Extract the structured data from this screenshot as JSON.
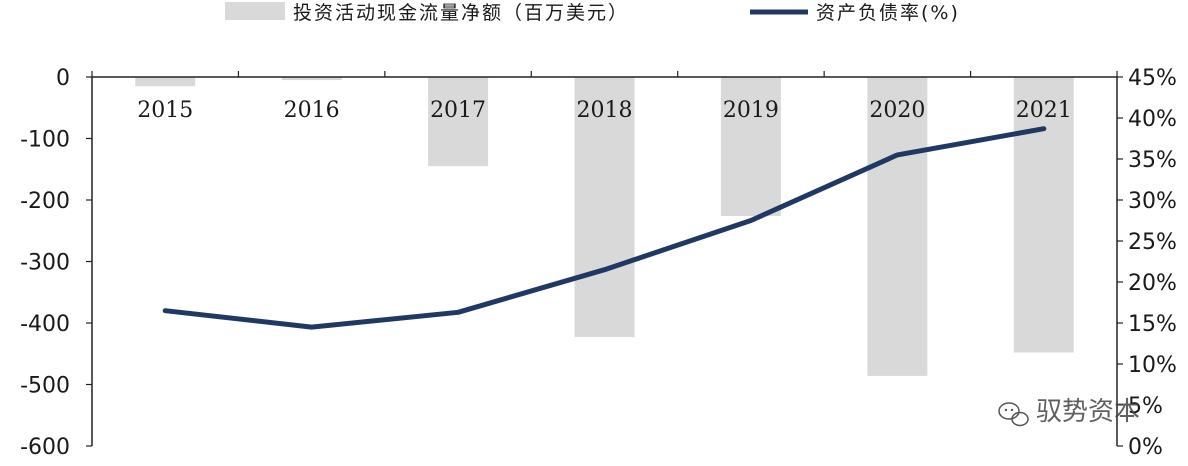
{
  "chart_data": {
    "type": "bar",
    "categories": [
      "2015",
      "2016",
      "2017",
      "2018",
      "2019",
      "2020",
      "2021"
    ],
    "series": [
      {
        "name": "投资活动现金流量净额（百万美元）",
        "type": "bar",
        "axis": "left",
        "values": [
          -15,
          -5,
          -145,
          -423,
          -226,
          -486,
          -448
        ],
        "color": "#d9d9d9"
      },
      {
        "name": "资产负债率(%)",
        "type": "line",
        "axis": "right",
        "values": [
          16.5,
          14.5,
          16.3,
          21.5,
          27.5,
          35.5,
          38.7
        ],
        "color": "#1f3864"
      }
    ],
    "left_axis": {
      "ylim": [
        -600,
        0
      ],
      "ticks": [
        0,
        -100,
        -200,
        -300,
        -400,
        -500,
        -600
      ],
      "tick_labels": [
        "0",
        "-100",
        "-200",
        "-300",
        "-400",
        "-500",
        "-600"
      ]
    },
    "right_axis": {
      "ylim": [
        0,
        45
      ],
      "ticks": [
        45,
        40,
        35,
        30,
        25,
        20,
        15,
        10,
        5,
        0
      ],
      "tick_labels": [
        "45%",
        "40%",
        "35%",
        "30%",
        "25%",
        "20%",
        "15%",
        "10%",
        "5%",
        "0%"
      ]
    },
    "legend_position": "top-center",
    "grid": false
  },
  "watermark": {
    "text": "驭势资本",
    "icon": "wechat-icon"
  }
}
